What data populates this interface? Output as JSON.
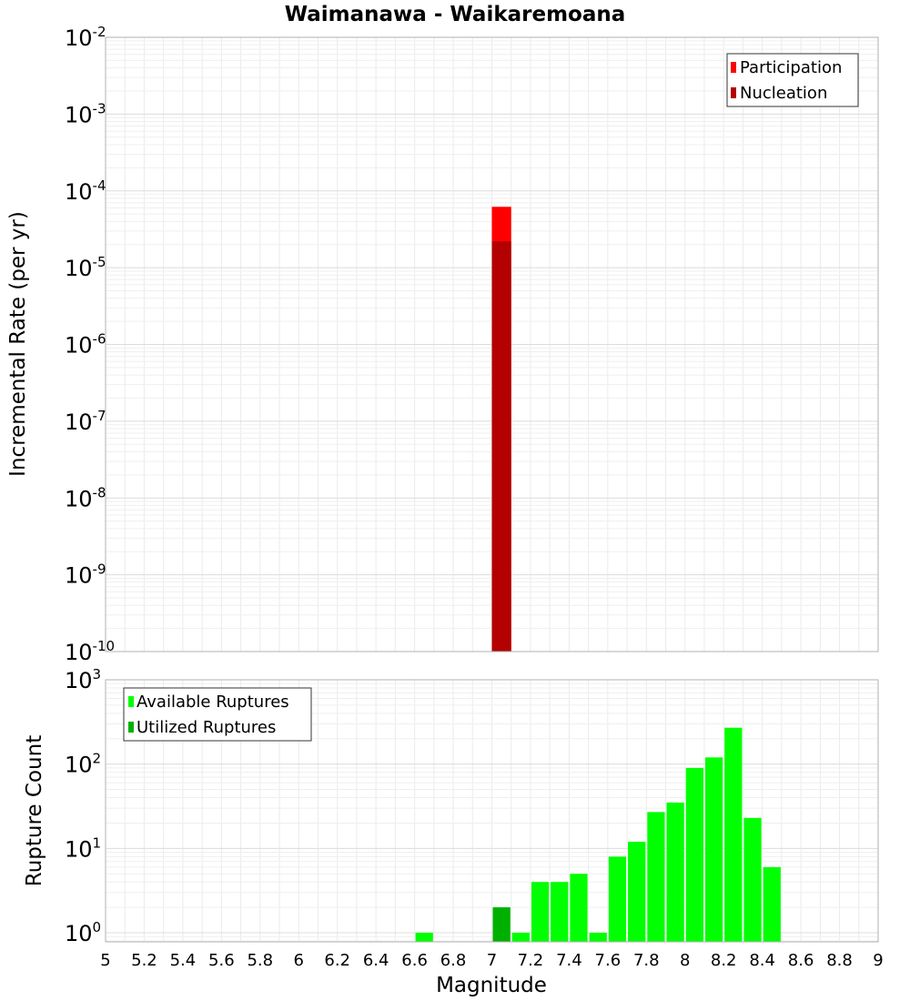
{
  "chart_data": [
    {
      "type": "bar",
      "title": "Waimanawa - Waikaremoana",
      "xlabel": "Magnitude",
      "ylabel": "Incremental Rate (per yr)",
      "xlim": [
        5,
        9
      ],
      "ylim": [
        1e-10,
        0.01
      ],
      "yscale": "log",
      "grid": true,
      "legend_position": "top-right",
      "bin_width": 0.1,
      "series": [
        {
          "name": "Participation",
          "color": "#ff0000",
          "x": [
            7.05
          ],
          "values": [
            6.2e-05
          ]
        },
        {
          "name": "Nucleation",
          "color": "#b30000",
          "x": [
            7.05
          ],
          "values": [
            2.2e-05
          ]
        }
      ]
    },
    {
      "type": "bar",
      "title": "",
      "xlabel": "Magnitude",
      "ylabel": "Rupture Count",
      "xlim": [
        5,
        9
      ],
      "ylim": [
        0.78,
        1000
      ],
      "yscale": "log",
      "grid": true,
      "legend_position": "top-left",
      "bin_width": 0.1,
      "series": [
        {
          "name": "Available Ruptures",
          "color": "#00ff00",
          "x": [
            6.65,
            7.05,
            7.15,
            7.25,
            7.35,
            7.45,
            7.55,
            7.65,
            7.75,
            7.85,
            7.95,
            8.05,
            8.15,
            8.25,
            8.35,
            8.45
          ],
          "values": [
            1,
            2,
            1,
            4,
            4,
            5,
            1,
            8,
            12,
            27,
            35,
            90,
            120,
            270,
            23,
            6
          ]
        },
        {
          "name": "Utilized Ruptures",
          "color": "#00b000",
          "x": [
            7.05
          ],
          "values": [
            2
          ]
        }
      ]
    }
  ],
  "x_ticks": [
    "5",
    "5.2",
    "5.4",
    "5.6",
    "5.8",
    "6",
    "6.2",
    "6.4",
    "6.6",
    "6.8",
    "7",
    "7.2",
    "7.4",
    "7.6",
    "7.8",
    "8",
    "8.2",
    "8.4",
    "8.6",
    "8.8",
    "9"
  ],
  "top_y_ticks": [
    {
      "base": "10",
      "exp": "-2"
    },
    {
      "base": "10",
      "exp": "-3"
    },
    {
      "base": "10",
      "exp": "-4"
    },
    {
      "base": "10",
      "exp": "-5"
    },
    {
      "base": "10",
      "exp": "-6"
    },
    {
      "base": "10",
      "exp": "-7"
    },
    {
      "base": "10",
      "exp": "-8"
    },
    {
      "base": "10",
      "exp": "-9"
    },
    {
      "base": "10",
      "exp": "-10"
    }
  ],
  "bottom_y_ticks": [
    {
      "base": "10",
      "exp": "3"
    },
    {
      "base": "10",
      "exp": "2"
    },
    {
      "base": "10",
      "exp": "1"
    },
    {
      "base": "10",
      "exp": "0"
    }
  ]
}
